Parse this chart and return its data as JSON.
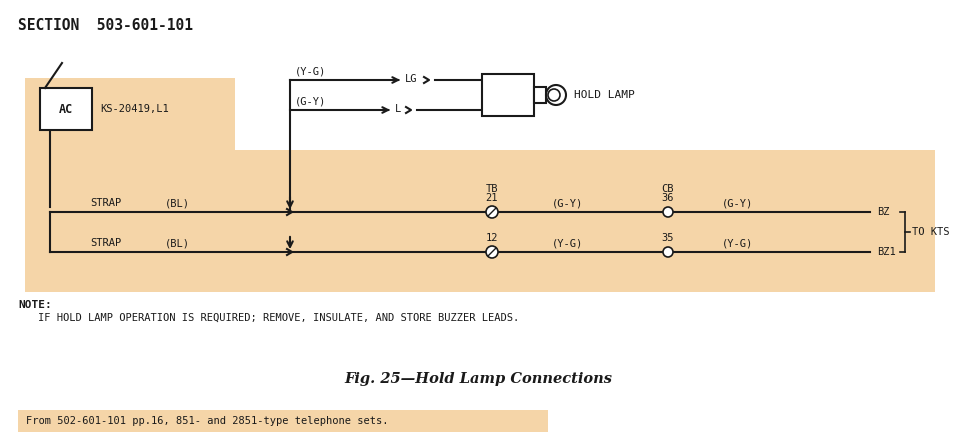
{
  "title": "SECTION  503-601-101",
  "fig_caption": "Fig. 25—Hold Lamp Connections",
  "note_line1": "NOTE:",
  "note_line2": "  IF HOLD LAMP OPERATION IS REQUIRED; REMOVE, INSULATE, AND STORE BUZZER LEADS.",
  "bottom_text": "From 502-601-101 pp.16, 851- and 2851-type telephone sets.",
  "background_color": "#ffffff",
  "panel_color": "#f5d5a8",
  "bottom_strip_color": "#f5d5a8",
  "text_color": "#1a1a1a",
  "line_color": "#1a1a1a",
  "title_fontsize": 10.5,
  "small_fontsize": 7.5,
  "fig_caption_fontsize": 10.5
}
